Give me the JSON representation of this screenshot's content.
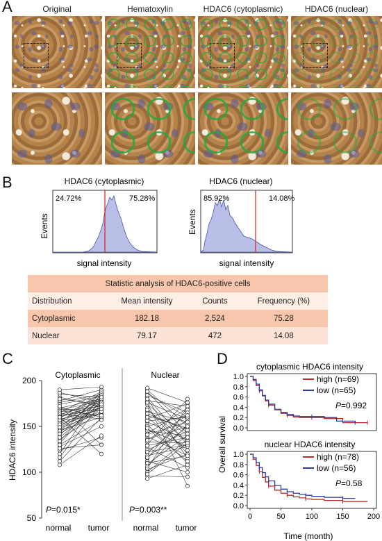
{
  "panel_a": {
    "letter": "A",
    "columns": [
      "Original",
      "Hematoxylin",
      "HDAC6 (cytoplasmic)",
      "HDAC6 (nuclear)"
    ]
  },
  "panel_b": {
    "letter": "B",
    "hist_left": {
      "title": "HDAC6 (cytoplasmic)",
      "left_pct": "24.72%",
      "right_pct": "75.28%",
      "ylabel": "Events",
      "xlabel": "signal intensity"
    },
    "hist_right": {
      "title": "HDAC6 (nuclear)",
      "left_pct": "85.92%",
      "right_pct": "14.08%",
      "ylabel": "Events",
      "xlabel": "signal intensity"
    },
    "table": {
      "title": "Statistic analysis of HDAC6-positive cells",
      "headers": [
        "Distribution",
        "Mean intensity",
        "Counts",
        "Frequency (%)"
      ],
      "rows": [
        [
          "Cytoplasmic",
          "182.18",
          "2,524",
          "75.28"
        ],
        [
          "Nuclear",
          "79.17",
          "472",
          "14.08"
        ]
      ]
    }
  },
  "panel_c": {
    "letter": "C",
    "ylabel": "HDAC6 intensity",
    "yticks": [
      "50",
      "100",
      "150",
      "200"
    ],
    "left": {
      "title": "Cytoplasmic",
      "p": "=0.015*",
      "x1": "normal",
      "x2": "tumor"
    },
    "right": {
      "title": "Nuclear",
      "p": "=0.003**",
      "x1": "normal",
      "x2": "tumor"
    },
    "p_letter": "P"
  },
  "panel_d": {
    "letter": "D",
    "ylabel": "Overall survival",
    "xlabel": "Time (month)",
    "yticks": [
      "0.0",
      "0.2",
      "0.4",
      "0.6",
      "0.8",
      "1.0"
    ],
    "xticks": [
      "0",
      "50",
      "100",
      "150",
      "200"
    ],
    "top": {
      "title": "cytoplasmic HDAC6 intensity",
      "high": "high (n=69)",
      "low": "low (n=65)",
      "p": "=0.992"
    },
    "bottom": {
      "title": "nuclear HDAC6 intensity",
      "high": "high (n=78)",
      "low": "low (n=56)",
      "p": "=0.58"
    },
    "p_letter": "P",
    "colors": {
      "high": "#c0262d",
      "low": "#2a3aa0"
    }
  },
  "chart_data": [
    {
      "type": "area",
      "title": "HDAC6 (cytoplasmic)",
      "xlabel": "signal intensity",
      "ylabel": "Events",
      "annotations": [
        "24.72%",
        "75.28%"
      ]
    },
    {
      "type": "area",
      "title": "HDAC6 (nuclear)",
      "xlabel": "signal intensity",
      "ylabel": "Events",
      "annotations": [
        "85.92%",
        "14.08%"
      ]
    },
    {
      "type": "scatter",
      "title": "Cytoplasmic",
      "ylabel": "HDAC6 intensity",
      "categories": [
        "normal",
        "tumor"
      ],
      "ylim": [
        50,
        200
      ],
      "pairs": [
        [
          182,
          171
        ],
        [
          176,
          185
        ],
        [
          171,
          160
        ],
        [
          168,
          178
        ],
        [
          166,
          172
        ],
        [
          164,
          158
        ],
        [
          162,
          181
        ],
        [
          160,
          175
        ],
        [
          158,
          168
        ],
        [
          156,
          163
        ],
        [
          155,
          185
        ],
        [
          153,
          170
        ],
        [
          150,
          178
        ],
        [
          148,
          165
        ],
        [
          146,
          160
        ],
        [
          144,
          172
        ],
        [
          140,
          188
        ],
        [
          136,
          166
        ],
        [
          132,
          178
        ],
        [
          128,
          150
        ],
        [
          124,
          138
        ],
        [
          120,
          186
        ],
        [
          116,
          176
        ],
        [
          112,
          160
        ],
        [
          108,
          140
        ],
        [
          178,
          190
        ],
        [
          174,
          183
        ],
        [
          170,
          180
        ],
        [
          169,
          167
        ],
        [
          167,
          162
        ],
        [
          165,
          188
        ],
        [
          163,
          177
        ],
        [
          161,
          170
        ],
        [
          159,
          186
        ],
        [
          157,
          174
        ],
        [
          154,
          180
        ],
        [
          152,
          166
        ],
        [
          149,
          171
        ],
        [
          145,
          184
        ],
        [
          142,
          169
        ],
        [
          138,
          176
        ],
        [
          134,
          182
        ],
        [
          130,
          157
        ],
        [
          126,
          130
        ],
        [
          185,
          182
        ],
        [
          187,
          176
        ],
        [
          190,
          193
        ],
        [
          180,
          174
        ],
        [
          172,
          130
        ],
        [
          160,
          120
        ]
      ],
      "annotation": "P=0.015*"
    },
    {
      "type": "scatter",
      "title": "Nuclear",
      "ylabel": "HDAC6 intensity",
      "categories": [
        "normal",
        "tumor"
      ],
      "ylim": [
        50,
        200
      ],
      "pairs": [
        [
          190,
          150
        ],
        [
          186,
          160
        ],
        [
          182,
          130
        ],
        [
          178,
          172
        ],
        [
          174,
          140
        ],
        [
          170,
          120
        ],
        [
          166,
          155
        ],
        [
          162,
          148
        ],
        [
          158,
          175
        ],
        [
          155,
          135
        ],
        [
          152,
          110
        ],
        [
          150,
          162
        ],
        [
          147,
          128
        ],
        [
          145,
          140
        ],
        [
          142,
          170
        ],
        [
          139,
          118
        ],
        [
          136,
          150
        ],
        [
          133,
          132
        ],
        [
          130,
          180
        ],
        [
          127,
          105
        ],
        [
          124,
          145
        ],
        [
          121,
          158
        ],
        [
          118,
          128
        ],
        [
          115,
          168
        ],
        [
          112,
          100
        ],
        [
          109,
          140
        ],
        [
          106,
          152
        ],
        [
          103,
          120
        ],
        [
          100,
          136
        ],
        [
          96,
          95
        ],
        [
          192,
          176
        ],
        [
          188,
          142
        ],
        [
          184,
          165
        ],
        [
          180,
          115
        ],
        [
          176,
          158
        ],
        [
          168,
          134
        ],
        [
          164,
          146
        ],
        [
          160,
          124
        ],
        [
          156,
          160
        ],
        [
          148,
          112
        ],
        [
          141,
          155
        ],
        [
          135,
          162
        ],
        [
          129,
          138
        ],
        [
          122,
          130
        ],
        [
          116,
          150
        ],
        [
          110,
          118
        ],
        [
          104,
          172
        ],
        [
          98,
          132
        ],
        [
          93,
          108
        ],
        [
          176,
          85
        ]
      ],
      "annotation": "P=0.003**"
    },
    {
      "type": "line",
      "title": "cytoplasmic HDAC6 intensity",
      "xlabel": "Time (month)",
      "ylabel": "Overall survival",
      "xlim": [
        0,
        200
      ],
      "ylim": [
        0,
        1
      ],
      "series": [
        {
          "name": "high (n=69)",
          "x": [
            0,
            5,
            10,
            15,
            20,
            25,
            30,
            40,
            50,
            60,
            70,
            80,
            100,
            120,
            150,
            190
          ],
          "y": [
            1.0,
            0.92,
            0.82,
            0.72,
            0.62,
            0.52,
            0.44,
            0.35,
            0.28,
            0.24,
            0.21,
            0.2,
            0.2,
            0.18,
            0.1,
            0.1
          ]
        },
        {
          "name": "low (n=65)",
          "x": [
            0,
            5,
            10,
            15,
            20,
            25,
            30,
            40,
            50,
            60,
            70,
            80,
            100,
            120,
            140,
            170
          ],
          "y": [
            1.0,
            0.94,
            0.85,
            0.74,
            0.63,
            0.54,
            0.46,
            0.36,
            0.3,
            0.26,
            0.23,
            0.22,
            0.22,
            0.2,
            0.13,
            0.1
          ]
        }
      ],
      "annotation": "P=0.992"
    },
    {
      "type": "line",
      "title": "nuclear HDAC6 intensity",
      "xlabel": "Time (month)",
      "ylabel": "Overall survival",
      "xlim": [
        0,
        200
      ],
      "ylim": [
        0,
        1
      ],
      "series": [
        {
          "name": "high (n=78)",
          "x": [
            0,
            5,
            10,
            15,
            20,
            25,
            30,
            40,
            50,
            60,
            70,
            80,
            90,
            100,
            120,
            150,
            190
          ],
          "y": [
            1.0,
            0.9,
            0.78,
            0.66,
            0.55,
            0.46,
            0.38,
            0.3,
            0.24,
            0.2,
            0.17,
            0.15,
            0.13,
            0.12,
            0.1,
            0.08,
            0.08
          ]
        },
        {
          "name": "low (n=56)",
          "x": [
            0,
            5,
            10,
            15,
            20,
            25,
            30,
            40,
            50,
            60,
            70,
            80,
            90,
            100,
            120,
            150,
            170
          ],
          "y": [
            1.0,
            0.93,
            0.84,
            0.74,
            0.64,
            0.56,
            0.48,
            0.39,
            0.32,
            0.27,
            0.24,
            0.22,
            0.2,
            0.18,
            0.16,
            0.14,
            0.14
          ]
        }
      ],
      "annotation": "P=0.58"
    }
  ]
}
